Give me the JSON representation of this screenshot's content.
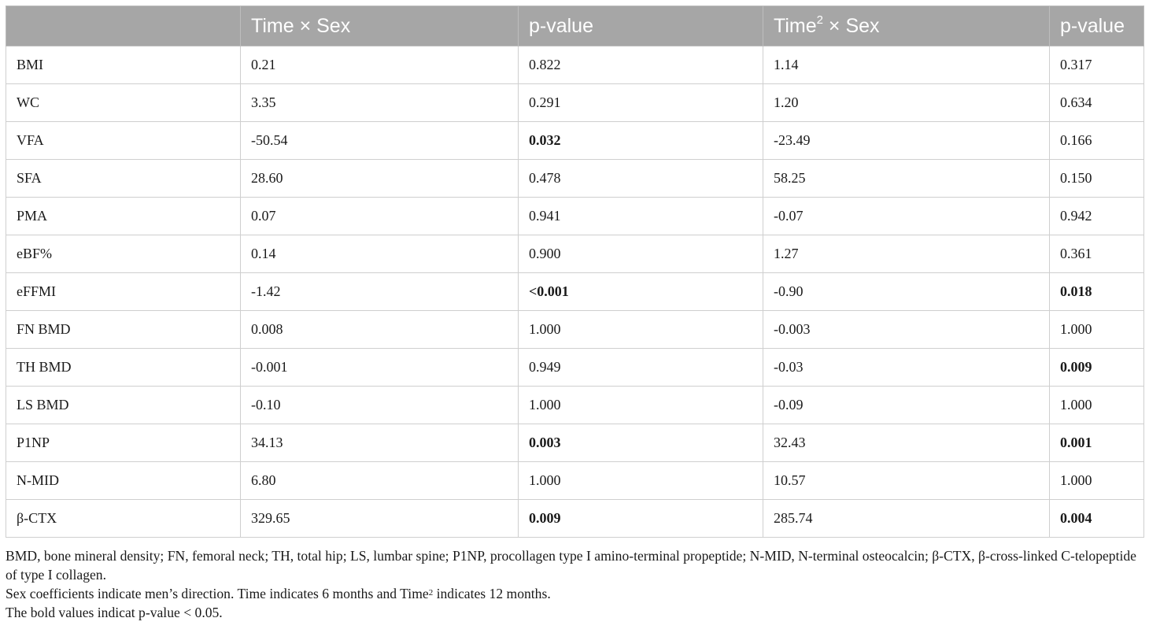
{
  "table": {
    "headers": [
      {
        "text": "",
        "sup": "",
        "after": ""
      },
      {
        "text": "Time × Sex",
        "sup": "",
        "after": ""
      },
      {
        "text": "p-value",
        "sup": "",
        "after": ""
      },
      {
        "text": "Time",
        "sup": "2",
        "after": " × Sex"
      },
      {
        "text": "p-value",
        "sup": "",
        "after": ""
      }
    ],
    "rows": [
      {
        "label": "BMI",
        "coef1": "0.21",
        "p1": "0.822",
        "p1_bold": false,
        "coef2": "1.14",
        "p2": "0.317",
        "p2_bold": false
      },
      {
        "label": "WC",
        "coef1": "3.35",
        "p1": "0.291",
        "p1_bold": false,
        "coef2": "1.20",
        "p2": "0.634",
        "p2_bold": false
      },
      {
        "label": "VFA",
        "coef1": "-50.54",
        "p1": "0.032",
        "p1_bold": true,
        "coef2": "-23.49",
        "p2": "0.166",
        "p2_bold": false
      },
      {
        "label": "SFA",
        "coef1": "28.60",
        "p1": "0.478",
        "p1_bold": false,
        "coef2": "58.25",
        "p2": "0.150",
        "p2_bold": false
      },
      {
        "label": "PMA",
        "coef1": "0.07",
        "p1": "0.941",
        "p1_bold": false,
        "coef2": "-0.07",
        "p2": "0.942",
        "p2_bold": false
      },
      {
        "label": "eBF%",
        "coef1": "0.14",
        "p1": "0.900",
        "p1_bold": false,
        "coef2": "1.27",
        "p2": "0.361",
        "p2_bold": false
      },
      {
        "label": "eFFMI",
        "coef1": "-1.42",
        "p1": "<0.001",
        "p1_bold": true,
        "coef2": "-0.90",
        "p2": "0.018",
        "p2_bold": true
      },
      {
        "label": "FN BMD",
        "coef1": "0.008",
        "p1": "1.000",
        "p1_bold": false,
        "coef2": "-0.003",
        "p2": "1.000",
        "p2_bold": false
      },
      {
        "label": "TH BMD",
        "coef1": "-0.001",
        "p1": "0.949",
        "p1_bold": false,
        "coef2": "-0.03",
        "p2": "0.009",
        "p2_bold": true
      },
      {
        "label": "LS BMD",
        "coef1": "-0.10",
        "p1": "1.000",
        "p1_bold": false,
        "coef2": "-0.09",
        "p2": "1.000",
        "p2_bold": false
      },
      {
        "label": "P1NP",
        "coef1": "34.13",
        "p1": "0.003",
        "p1_bold": true,
        "coef2": "32.43",
        "p2": "0.001",
        "p2_bold": true
      },
      {
        "label": "N-MID",
        "coef1": "6.80",
        "p1": "1.000",
        "p1_bold": false,
        "coef2": "10.57",
        "p2": "1.000",
        "p2_bold": false
      },
      {
        "label": "β-CTX",
        "coef1": "329.65",
        "p1": "0.009",
        "p1_bold": true,
        "coef2": "285.74",
        "p2": "0.004",
        "p2_bold": true
      }
    ]
  },
  "footnotes": {
    "abbreviations": "BMD, bone mineral density; FN, femoral neck; TH, total hip; LS, lumbar spine; P1NP, procollagen type I amino-terminal propeptide; N-MID, N-terminal osteocalcin; β-CTX, β-cross-linked C-telopeptide of type I collagen.",
    "sex_note_before": "Sex coefficients indicate men’s direction. Time indicates 6 months and Time",
    "sex_note_sup": "2",
    "sex_note_after": " indicates 12 months.",
    "bold_note": "The bold values indicat p-value < 0.05."
  },
  "colors": {
    "header_background": "#a6a6a6",
    "header_text": "#ffffff",
    "border": "#cfcfcf"
  }
}
